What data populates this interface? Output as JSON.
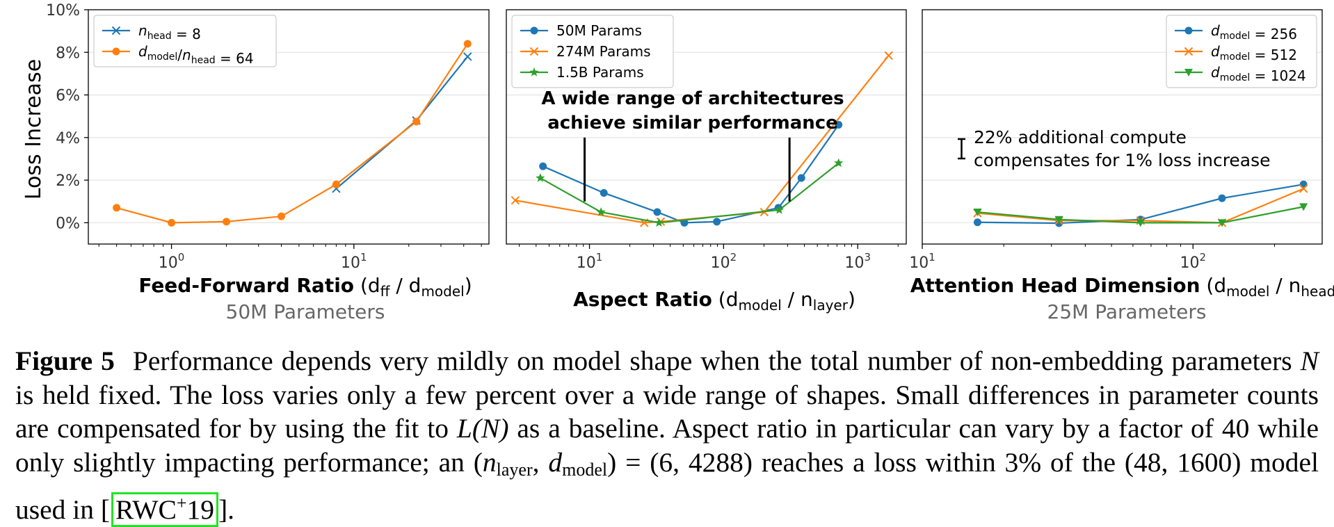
{
  "colors": {
    "blue": "#1f77b4",
    "orange": "#ff7f0e",
    "green": "#2ca02c"
  },
  "chart_data": [
    {
      "type": "line",
      "title": "",
      "xscale": "log",
      "xlim": [
        0.35,
        55
      ],
      "ylim": [
        -1,
        10
      ],
      "xtick_values": [
        1,
        10
      ],
      "xtick_labels": [
        "10^0",
        "10^1"
      ],
      "ytick_values": [
        0,
        2,
        4,
        6,
        8,
        10
      ],
      "ytick_labels": [
        "0%",
        "2%",
        "4%",
        "6%",
        "8%",
        "10%"
      ],
      "ylabel": "Loss Increase",
      "xlabel_bold": "Feed-Forward Ratio",
      "xlabel_paren": "(d_ff / d_model)",
      "subtitle": "50M Parameters",
      "legend_placement": "top-left",
      "series": [
        {
          "name": "n_head = 8",
          "color": "#1f77b4",
          "marker": "x",
          "x": [
            8,
            22,
            42
          ],
          "y": [
            1.6,
            4.8,
            7.8
          ]
        },
        {
          "name": "d_model/n_head = 64",
          "color": "#ff7f0e",
          "marker": "o",
          "x": [
            0.5,
            1,
            2,
            4,
            8,
            22,
            42
          ],
          "y": [
            0.7,
            0.0,
            0.05,
            0.3,
            1.8,
            4.75,
            8.4
          ]
        }
      ]
    },
    {
      "type": "line",
      "title": "",
      "xscale": "log",
      "xlim": [
        2.4,
        2300
      ],
      "ylim": [
        -1,
        10
      ],
      "xtick_values": [
        10,
        100,
        1000
      ],
      "xtick_labels": [
        "10^1",
        "10^2",
        "10^3"
      ],
      "ytick_values": [
        0,
        2,
        4,
        6,
        8,
        10
      ],
      "ytick_labels": [],
      "xlabel_bold": "Aspect Ratio",
      "xlabel_paren": "(d_model / n_layer)",
      "subtitle": "",
      "legend_placement": "top-left",
      "annotation": [
        "A wide range of architectures",
        "achieve similar performance"
      ],
      "series": [
        {
          "name": "50M Params",
          "color": "#1f77b4",
          "marker": "o",
          "x": [
            4.5,
            12.8,
            32,
            51,
            89,
            256,
            380,
            720
          ],
          "y": [
            2.65,
            1.4,
            0.5,
            0.0,
            0.05,
            0.7,
            2.1,
            4.6
          ]
        },
        {
          "name": "274M Params",
          "color": "#ff7f0e",
          "marker": "x",
          "x": [
            2.8,
            25.6,
            34,
            201,
            1700
          ],
          "y": [
            1.05,
            0.0,
            0.05,
            0.5,
            7.85
          ]
        },
        {
          "name": "1.5B Params",
          "color": "#2ca02c",
          "marker": "*",
          "x": [
            4.3,
            12.2,
            33,
            260,
            720
          ],
          "y": [
            2.1,
            0.5,
            0.0,
            0.6,
            2.8
          ]
        }
      ]
    },
    {
      "type": "line",
      "title": "",
      "xscale": "log",
      "xlim": [
        10,
        300
      ],
      "ylim": [
        -1,
        10
      ],
      "xtick_values": [
        10,
        100
      ],
      "xtick_labels": [
        "10^1",
        "10^2"
      ],
      "ytick_values": [
        0,
        2,
        4,
        6,
        8,
        10
      ],
      "ytick_labels": [],
      "xlabel_bold": "Attention Head Dimension",
      "xlabel_paren": "(d_model / n_head)",
      "subtitle": "25M Parameters",
      "legend_placement": "top-right",
      "annotation": [
        "22% additional compute",
        "compensates for 1% loss increase"
      ],
      "series": [
        {
          "name": "d_model = 256",
          "color": "#1f77b4",
          "marker": "o",
          "x": [
            16,
            32,
            64,
            128,
            256
          ],
          "y": [
            0.02,
            -0.02,
            0.15,
            1.15,
            1.8
          ]
        },
        {
          "name": "d_model = 512",
          "color": "#ff7f0e",
          "marker": "x",
          "x": [
            16,
            32,
            64,
            128,
            256
          ],
          "y": [
            0.45,
            0.1,
            0.1,
            0.0,
            1.6
          ]
        },
        {
          "name": "d_model = 1024",
          "color": "#2ca02c",
          "marker": "v",
          "x": [
            16,
            32,
            64,
            128,
            256
          ],
          "y": [
            0.5,
            0.15,
            0.0,
            0.0,
            0.75
          ]
        }
      ]
    }
  ],
  "caption": {
    "label": "Figure 5",
    "t1": "Performance depends very mildly on model shape when the total number of non-embedding parameters ",
    "t2": "N",
    "t3": " is held fixed. The loss varies only a few percent over a wide range of shapes. Small differences in parameter counts are compensated for by using the fit to ",
    "t4": "L(N)",
    "t5": " as a baseline. Aspect ratio in particular can vary by a factor of 40 while only slightly impacting performance; an (",
    "t6": "n",
    "t7": "layer",
    "t8": ", ",
    "t9": "d",
    "t10": "model",
    "t11": ") = (6, 4288) reaches a loss within 3% of the (48, 1600) model used in [",
    "cite_main": "RWC",
    "cite_sup": "+",
    "cite_year": "19",
    "t12": "]."
  }
}
